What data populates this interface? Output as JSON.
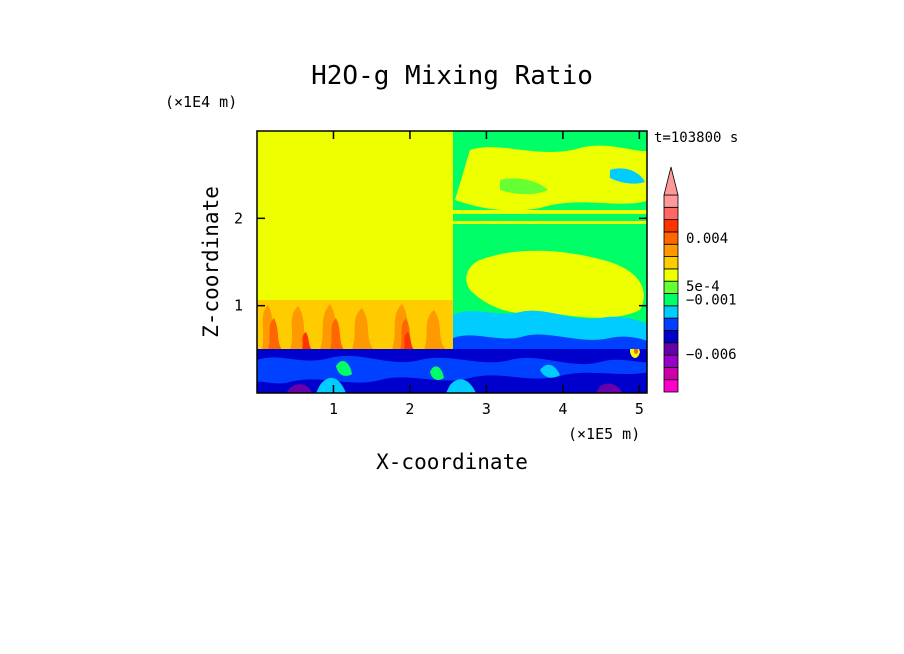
{
  "chart_data": {
    "type": "heatmap",
    "title": "H2O-g Mixing Ratio",
    "xlabel": "X-coordinate",
    "ylabel": "Z-coordinate",
    "x_unit": "(×1E5 m)",
    "y_unit": "(×1E4 m)",
    "time_label": "t=103800 s",
    "xlim": [
      0,
      5.1
    ],
    "ylim": [
      0,
      3
    ],
    "x_ticks": [
      1,
      2,
      3,
      4,
      5
    ],
    "x_tick_labels": [
      "1",
      "2",
      "3",
      "4",
      "5"
    ],
    "y_ticks": [
      1,
      2
    ],
    "y_tick_labels": [
      "1",
      "2"
    ],
    "colorbar": {
      "extend": "max",
      "colors": [
        "#ff00cc",
        "#cc00aa",
        "#9900cc",
        "#6600aa",
        "#0000cc",
        "#0040ff",
        "#00ccff",
        "#00ff66",
        "#66ff33",
        "#eeff00",
        "#ffcc00",
        "#ff9900",
        "#ff6600",
        "#ff3300",
        "#ff6666",
        "#ff9999"
      ],
      "labels": [
        {
          "value": 0.004,
          "text": "0.004"
        },
        {
          "value": 0.0005,
          "text": "5e-4"
        },
        {
          "value": -0.001,
          "text": "−0.001"
        },
        {
          "value": -0.006,
          "text": "−0.006"
        }
      ]
    },
    "regions": [
      {
        "name": "upper-left",
        "x": [
          0,
          2.55
        ],
        "z": [
          1.0,
          3.0
        ],
        "dominant_level": 9
      },
      {
        "name": "left-plumes",
        "x": [
          0,
          2.55
        ],
        "z": [
          0.5,
          1.0
        ],
        "dominant_level": 12
      },
      {
        "name": "upper-right",
        "x": [
          2.55,
          5.1
        ],
        "z": [
          0.5,
          3.0
        ],
        "dominant_level": 8
      },
      {
        "name": "surface-layer",
        "x": [
          0,
          5.1
        ],
        "z": [
          0,
          0.5
        ],
        "dominant_level": 4
      }
    ]
  }
}
